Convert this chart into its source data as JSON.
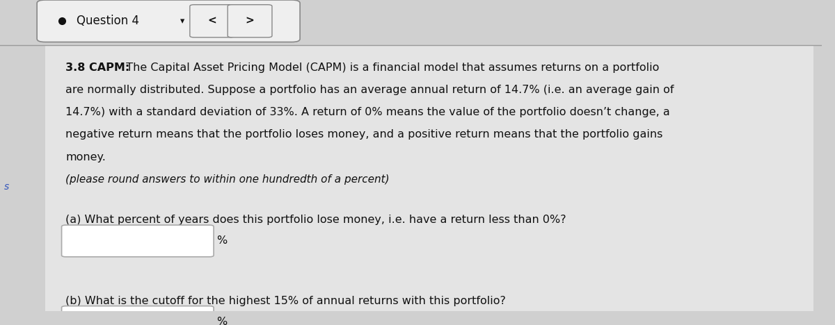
{
  "bg_color": "#d0d0d0",
  "header_bg": "#efefef",
  "header_text": "Question 4",
  "header_fontsize": 12,
  "body_bg": "#e4e4e4",
  "section_number": "3.8 CAPM:",
  "italic_note": "(please round answers to within one hundredth of a percent)",
  "question_a": "(a) What percent of years does this portfolio lose money, i.e. have a return less than 0%?",
  "question_b": "(b) What is the cutoff for the highest 15% of annual returns with this portfolio?",
  "percent_label": "%",
  "side_label": "s",
  "text_color": "#111111",
  "box_color": "#ffffff",
  "box_border": "#aaaaaa",
  "nav_button_border": "#888888",
  "main_fontsize": 11.5,
  "question_fontsize": 11.5,
  "note_fontsize": 11.0,
  "paragraph_lines": [
    "  The Capital Asset Pricing Model (CAPM) is a financial model that assumes returns on a portfolio",
    "are normally distributed. Suppose a portfolio has an average annual return of 14.7% (i.e. an average gain of",
    "14.7%) with a standard deviation of 33%. A return of 0% means the value of the portfolio doesn’t change, a",
    "negative return means that the portfolio loses money, and a positive return means that the portfolio gains",
    "money."
  ]
}
